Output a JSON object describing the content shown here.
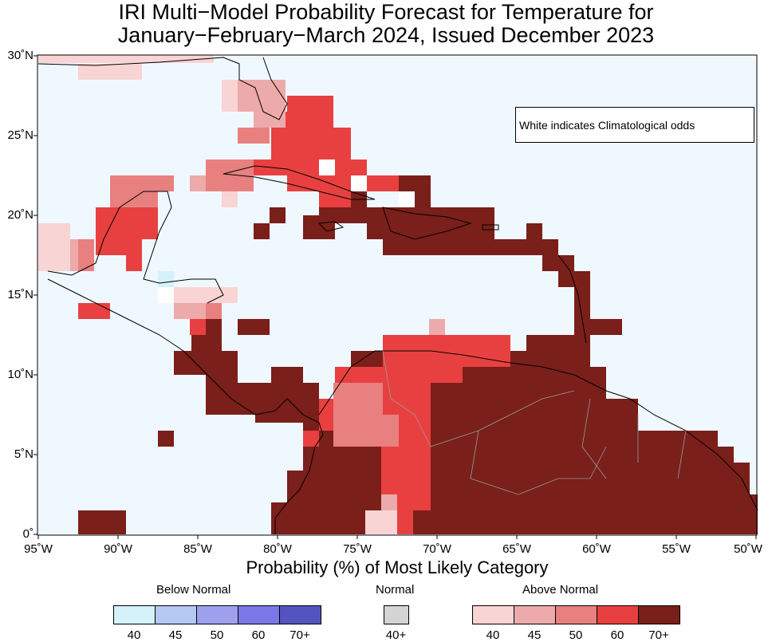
{
  "title": {
    "line1": "IRI Multi−Model Probability Forecast for Temperature for",
    "line2": "January−February−March 2024, Issued December 2023"
  },
  "map": {
    "ocean_color": "#f0f8ff",
    "lat_ticks": [
      "30˚N",
      "25˚N",
      "20˚N",
      "15˚N",
      "10˚N",
      "5˚N",
      "0˚"
    ],
    "lon_ticks": [
      "95˚W",
      "90˚W",
      "85˚W",
      "80˚W",
      "75˚W",
      "70˚W",
      "65˚W",
      "60˚W",
      "55˚W",
      "50˚W"
    ],
    "lat_range": [
      0,
      30
    ],
    "lon_range": [
      -95,
      -50
    ],
    "note": "White indicates Climatological odds"
  },
  "legend": {
    "title": "Probability (%) of Most Likely Category",
    "below": {
      "label": "Below Normal",
      "ticks": [
        "40",
        "45",
        "50",
        "60",
        "70+"
      ],
      "colors": [
        "#d4f2fa",
        "#b4c8f4",
        "#9ea0ee",
        "#7a78e6",
        "#5454c0"
      ]
    },
    "normal": {
      "label": "Normal",
      "ticks": [
        "40+"
      ],
      "colors": [
        "#d4d4d4"
      ]
    },
    "above": {
      "label": "Above Normal",
      "ticks": [
        "40",
        "45",
        "50",
        "60",
        "70+"
      ],
      "colors": [
        "#f9d4d4",
        "#ecaaaa",
        "#e88080",
        "#e84040",
        "#7a1f1a"
      ]
    }
  }
}
